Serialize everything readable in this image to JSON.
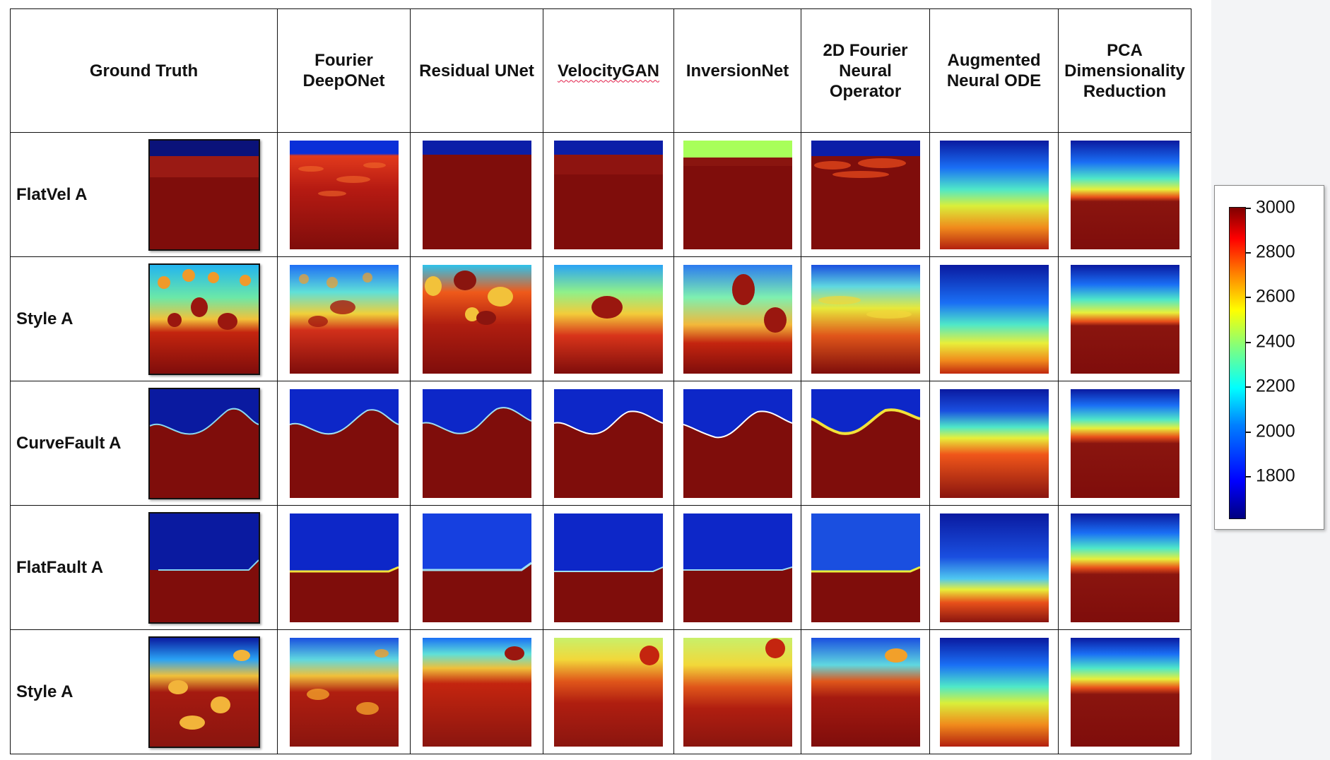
{
  "columns": {
    "ground_truth": "Ground Truth",
    "fourier_deeponet": "Fourier DeepONet",
    "residual_unet": "Residual UNet",
    "velocitygan": "VelocityGAN",
    "inversionnet": "InversionNet",
    "fno2d": "2D Fourier Neural Operator",
    "augmented_node": "Augmented Neural ODE",
    "pca": "PCA Dimensionality Reduction"
  },
  "rows": [
    {
      "label": "FlatVel A"
    },
    {
      "label": "Style A"
    },
    {
      "label": "CurveFault A"
    },
    {
      "label": "FlatFault A"
    },
    {
      "label": "Style A"
    }
  ],
  "colorbar": {
    "ticks": [
      "3000",
      "2800",
      "2600",
      "2400",
      "2200",
      "2000",
      "1800"
    ],
    "colormap": "jet",
    "colors": {
      "low": "#00007f",
      "high": "#7f0000"
    }
  }
}
